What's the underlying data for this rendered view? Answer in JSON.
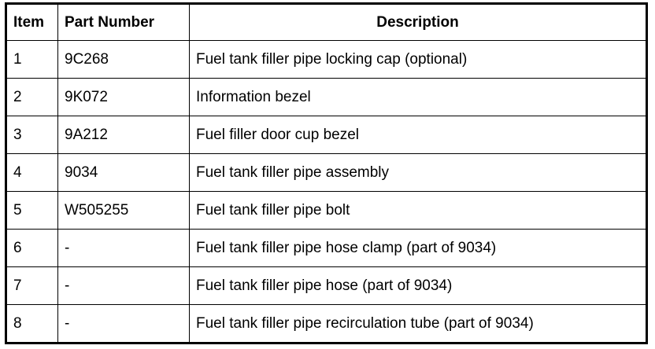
{
  "table": {
    "headers": {
      "item": "Item",
      "part_number": "Part Number",
      "description": "Description"
    },
    "rows": [
      {
        "item": "1",
        "part_number": "9C268",
        "description": "Fuel tank filler pipe locking cap (optional)"
      },
      {
        "item": "2",
        "part_number": "9K072",
        "description": "Information bezel"
      },
      {
        "item": "3",
        "part_number": "9A212",
        "description": "Fuel filler door cup bezel"
      },
      {
        "item": "4",
        "part_number": "9034",
        "description": "Fuel tank filler pipe assembly"
      },
      {
        "item": "5",
        "part_number": "W505255",
        "description": "Fuel tank filler pipe bolt"
      },
      {
        "item": "6",
        "part_number": "-",
        "description": "Fuel tank filler pipe hose clamp (part of 9034)"
      },
      {
        "item": "7",
        "part_number": "-",
        "description": "Fuel tank filler pipe hose (part of 9034)"
      },
      {
        "item": "8",
        "part_number": "-",
        "description": "Fuel tank filler pipe recirculation tube (part of 9034)"
      }
    ]
  }
}
